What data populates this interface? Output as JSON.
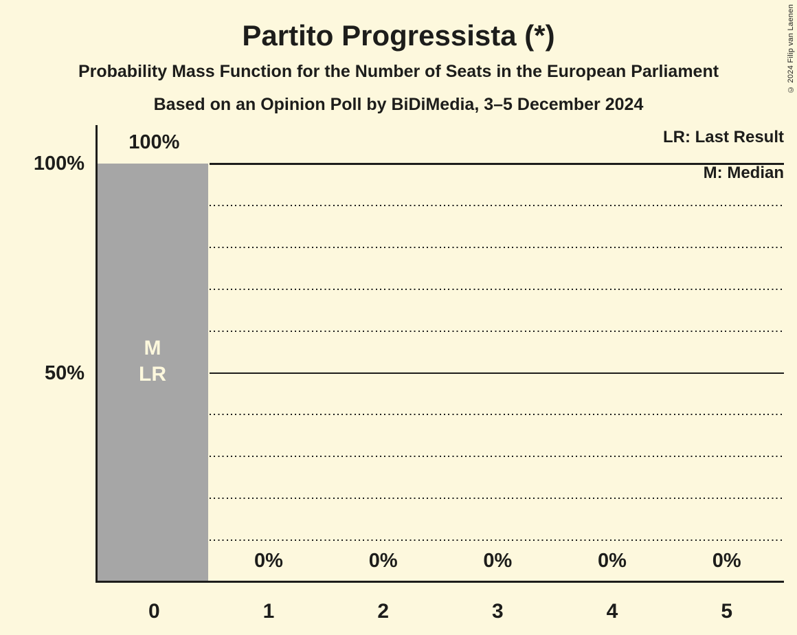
{
  "chart_data": {
    "type": "bar",
    "title": "Partito Progressista (*)",
    "subtitle": "Probability Mass Function for the Number of Seats in the European Parliament",
    "poll_line": "Based on an Opinion Poll by BiDiMedia, 3–5 December 2024",
    "categories": [
      "0",
      "1",
      "2",
      "3",
      "4",
      "5"
    ],
    "values": [
      100,
      0,
      0,
      0,
      0,
      0
    ],
    "value_labels": [
      "100%",
      "0%",
      "0%",
      "0%",
      "0%",
      "0%"
    ],
    "bar_annotations": [
      [
        "M",
        "LR"
      ],
      [],
      [],
      [],
      [],
      []
    ],
    "ylim": [
      0,
      100
    ],
    "yticks": [
      {
        "value": 100,
        "label": "100%"
      },
      {
        "value": 50,
        "label": "50%"
      }
    ],
    "gridlines": [
      {
        "value": 100,
        "style": "solid"
      },
      {
        "value": 90,
        "style": "dotted"
      },
      {
        "value": 80,
        "style": "dotted"
      },
      {
        "value": 70,
        "style": "dotted"
      },
      {
        "value": 60,
        "style": "dotted"
      },
      {
        "value": 50,
        "style": "solid"
      },
      {
        "value": 40,
        "style": "dotted"
      },
      {
        "value": 30,
        "style": "dotted"
      },
      {
        "value": 20,
        "style": "dotted"
      },
      {
        "value": 10,
        "style": "dotted"
      }
    ],
    "legend": {
      "lr": "LR: Last Result",
      "m": "M: Median"
    },
    "colors": {
      "background": "#fdf8dd",
      "bar": "#a6a6a6",
      "text": "#1d1d1b",
      "bar_label": "#fdf8dd"
    }
  },
  "copyright": "© 2024 Filip van Laenen"
}
